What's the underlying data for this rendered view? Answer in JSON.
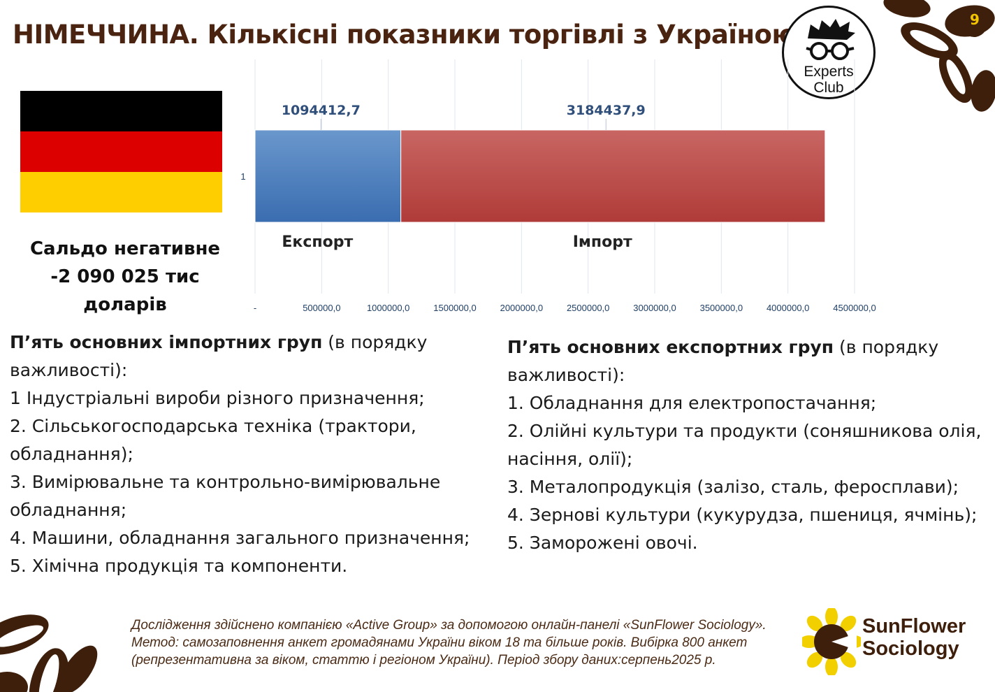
{
  "header": {
    "title": "НІМЕЧЧИНА. Кількісні показники торгівлі з Україною",
    "page_number": "9"
  },
  "logo": {
    "club_line1": "Experts",
    "club_line2": "Club"
  },
  "balance": {
    "line1": "Сальдо негативне",
    "line2": "-2 090 025 тис доларів"
  },
  "colors": {
    "export": "#4a7fc0",
    "import": "#c0504d",
    "title": "#4a2410",
    "accent_brown": "#3e1f0c",
    "accent_yellow": "#f2c500",
    "flag_black": "#000000",
    "flag_red": "#dd0000",
    "flag_gold": "#ffce00"
  },
  "chart_data": {
    "type": "bar",
    "orientation": "horizontal",
    "stacked": true,
    "categories": [
      "1"
    ],
    "series": [
      {
        "name": "Експорт",
        "values": [
          1094412.7
        ],
        "label": "1094412,7"
      },
      {
        "name": "Імпорт",
        "values": [
          3184437.9
        ],
        "label": "3184437,9"
      }
    ],
    "xlim": [
      0,
      4500000
    ],
    "x_ticks": [
      0,
      500000,
      1000000,
      1500000,
      2000000,
      2500000,
      3000000,
      3500000,
      4000000,
      4500000
    ],
    "x_tick_labels": [
      "-",
      "500000,0",
      "1000000,0",
      "1500000,0",
      "2000000,0",
      "2500000,0",
      "3000000,0",
      "3500000,0",
      "4000000,0",
      "4500000,0"
    ],
    "grid": true,
    "legend": "none"
  },
  "imports": {
    "heading_bold": "П’ять основних імпортних груп",
    "heading_rest": " (в порядку важливості):",
    "items": [
      "1 Індустріальні вироби різного призначення;",
      "2. Сільськогосподарська техніка (трактори, обладнання);",
      "3. Вимірювальне та контрольно-вимірювальне обладнання;",
      "4. Машини, обладнання загального призначення;",
      "5. Хімічна продукція та компоненти."
    ]
  },
  "exports": {
    "heading_bold": "П’ять основних експортних груп",
    "heading_rest": " (в порядку важливості):",
    "items": [
      "1. Обладнання для електропостачання;",
      "2. Олійні культури та продукти (соняшникова олія, насіння, олії);",
      "3. Металопродукція (залізо, сталь, феросплави);",
      "4. Зернові культури (кукурудза, пшениця, ячмінь);",
      "5. Заморожені овочі."
    ]
  },
  "footer": {
    "note": "Дослідження здійснено компанією «Active Group» за допомогою онлайн-панелі «SunFlower Sociology». Метод: самозаповнення анкет громадянами України віком 18 та більше років. Вибірка 800 анкет (репрезентативна за віком, статтю і регіоном України). Період збору даних:серпень2025 р.",
    "brand_line1": "SunFlower",
    "brand_line2": "Sociology"
  }
}
